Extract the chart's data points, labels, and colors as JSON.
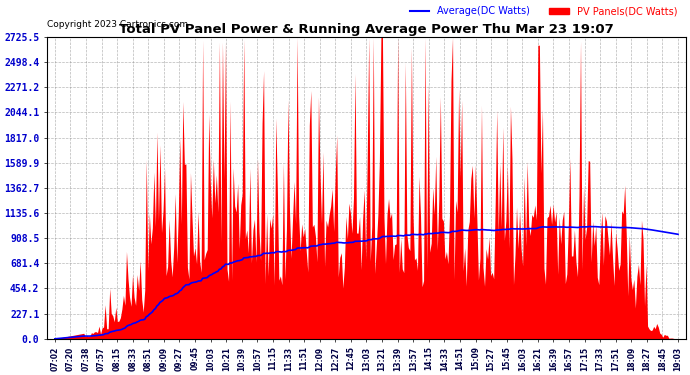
{
  "title": "Total PV Panel Power & Running Average Power Thu Mar 23 19:07",
  "copyright": "Copyright 2023 Cartronics.com",
  "legend_avg": "Average(DC Watts)",
  "legend_pv": "PV Panels(DC Watts)",
  "ylabel_values": [
    0.0,
    227.1,
    454.2,
    681.4,
    908.5,
    1135.6,
    1362.7,
    1589.9,
    1817.0,
    2044.1,
    2271.2,
    2498.4,
    2725.5
  ],
  "ymax": 2725.5,
  "ymin": 0.0,
  "background_color": "#ffffff",
  "bar_color": "#ff0000",
  "avg_color": "#0000ff",
  "grid_color": "#888888",
  "title_color": "#000000",
  "copyright_color": "#000000",
  "time_labels": [
    "07:02",
    "07:20",
    "07:38",
    "07:57",
    "08:15",
    "08:33",
    "08:51",
    "09:09",
    "09:27",
    "09:45",
    "10:03",
    "10:21",
    "10:39",
    "10:57",
    "11:15",
    "11:33",
    "11:51",
    "12:09",
    "12:27",
    "12:45",
    "13:03",
    "13:21",
    "13:39",
    "13:57",
    "14:15",
    "14:33",
    "14:51",
    "15:09",
    "15:27",
    "15:45",
    "16:03",
    "16:21",
    "16:39",
    "16:57",
    "17:15",
    "17:33",
    "17:51",
    "18:09",
    "18:27",
    "18:45",
    "19:03"
  ]
}
